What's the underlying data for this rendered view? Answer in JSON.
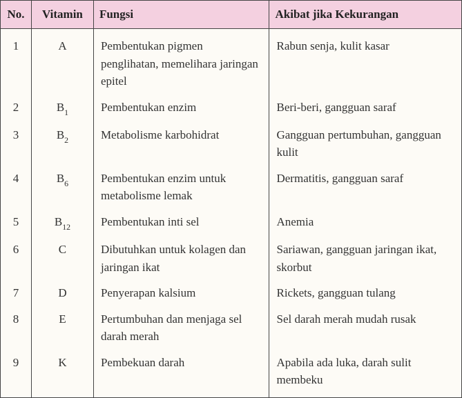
{
  "headers": {
    "no": "No.",
    "vitamin": "Vitamin",
    "fungsi": "Fungsi",
    "defisiensi": "Akibat jika Kekurangan"
  },
  "rows": [
    {
      "no": "1",
      "vit_main": "A",
      "vit_sub": "",
      "fungsi": "Pembentukan pigmen penglihatan, memelihara jaringan epitel",
      "defisiensi": "Rabun senja, kulit kasar"
    },
    {
      "no": "2",
      "vit_main": "B",
      "vit_sub": "1",
      "fungsi": "Pembentukan enzim",
      "defisiensi": "Beri-beri, gangguan saraf"
    },
    {
      "no": "3",
      "vit_main": "B",
      "vit_sub": "2",
      "fungsi": "Metabolisme karbohidrat",
      "defisiensi": "Gangguan pertumbuhan, gangguan kulit"
    },
    {
      "no": "4",
      "vit_main": "B",
      "vit_sub": "6",
      "fungsi": "Pembentukan enzim untuk metabolisme lemak",
      "defisiensi": "Dermatitis, gangguan saraf"
    },
    {
      "no": "5",
      "vit_main": "B",
      "vit_sub": "12",
      "fungsi": "Pembentukan inti sel",
      "defisiensi": "Anemia"
    },
    {
      "no": "6",
      "vit_main": "C",
      "vit_sub": "",
      "fungsi": "Dibutuhkan untuk kolagen dan jaringan ikat",
      "defisiensi": "Sariawan, gangguan jaringan ikat, skorbut"
    },
    {
      "no": "7",
      "vit_main": "D",
      "vit_sub": "",
      "fungsi": "Penyerapan kalsium",
      "defisiensi": "Rickets, gangguan tulang"
    },
    {
      "no": "8",
      "vit_main": "E",
      "vit_sub": "",
      "fungsi": "Pertumbuhan dan menjaga sel darah merah",
      "defisiensi": "Sel darah merah mudah rusak"
    },
    {
      "no": "9",
      "vit_main": "K",
      "vit_sub": "",
      "fungsi": "Pembekuan darah",
      "defisiensi": "Apabila ada luka, darah sulit membeku"
    }
  ]
}
